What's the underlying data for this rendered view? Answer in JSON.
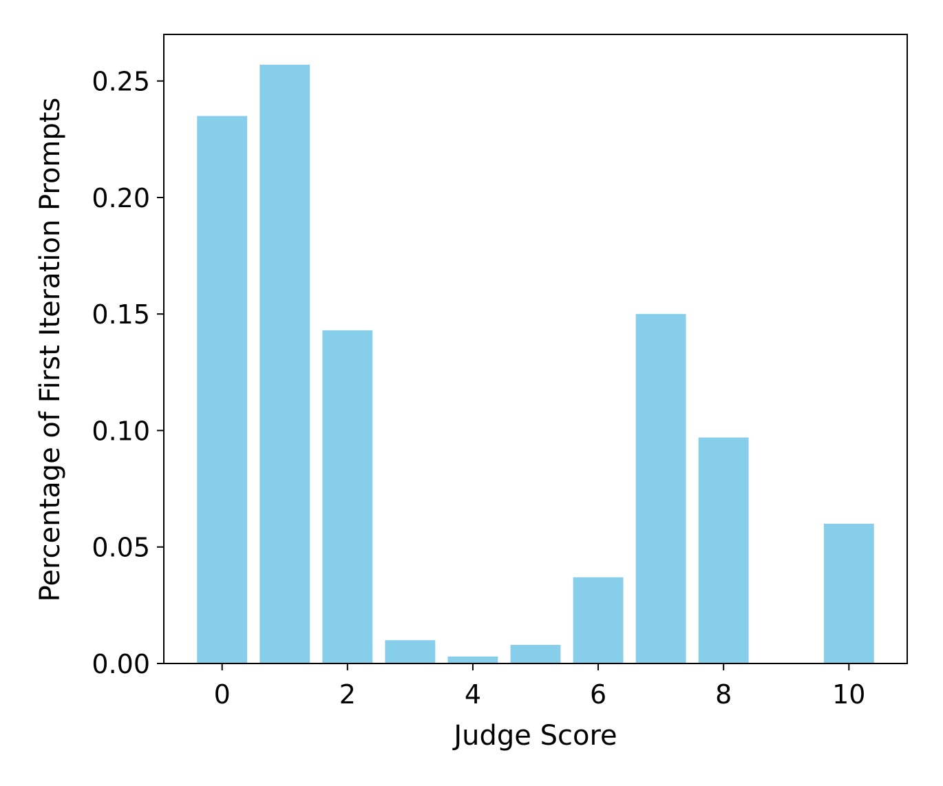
{
  "chart_data": {
    "type": "bar",
    "title": "",
    "xlabel": "Judge Score",
    "ylabel": "Percentage of First Iteration Prompts",
    "bar_color": "#87CEEB",
    "x": [
      0,
      1,
      2,
      3,
      4,
      5,
      6,
      7,
      8,
      10
    ],
    "values": [
      0.235,
      0.257,
      0.143,
      0.01,
      0.003,
      0.008,
      0.037,
      0.15,
      0.097,
      0.06
    ],
    "xlim": [
      -0.93,
      10.93
    ],
    "ylim": [
      0,
      0.27
    ],
    "xticks": [
      0,
      2,
      4,
      6,
      8,
      10
    ],
    "xtick_labels": [
      "0",
      "2",
      "4",
      "6",
      "8",
      "10"
    ],
    "yticks": [
      0.0,
      0.05,
      0.1,
      0.15,
      0.2,
      0.25
    ],
    "ytick_labels": [
      "0.00",
      "0.05",
      "0.10",
      "0.15",
      "0.20",
      "0.25"
    ],
    "bar_width": 0.8,
    "grid": false,
    "legend": "none"
  }
}
